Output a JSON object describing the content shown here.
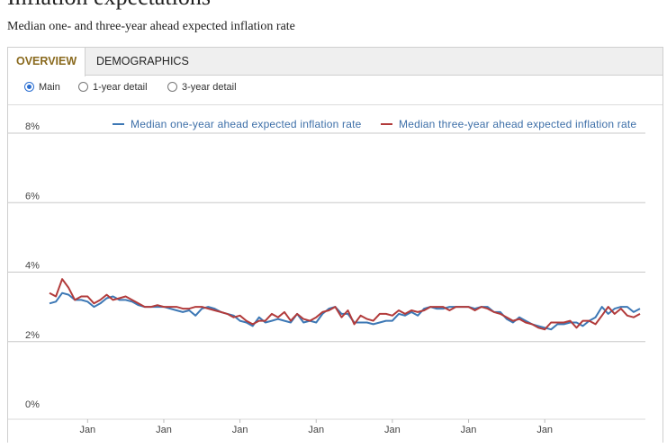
{
  "page": {
    "title": "Inflation expectations",
    "subtitle": "Median one- and three-year ahead expected inflation rate"
  },
  "tabs": [
    {
      "label": "OVERVIEW",
      "active": true
    },
    {
      "label": "DEMOGRAPHICS",
      "active": false
    }
  ],
  "view_options": [
    {
      "label": "Main",
      "selected": true
    },
    {
      "label": "1-year detail",
      "selected": false
    },
    {
      "label": "3-year detail",
      "selected": false
    }
  ],
  "colors": {
    "one_year": "#3d78b5",
    "three_year": "#b23b3b",
    "gridline": "#c8c8c8",
    "tab_active_text": "#8a6a1e"
  },
  "chart_data": {
    "type": "line",
    "title": "",
    "xlabel": "",
    "ylabel": "",
    "ylim": [
      0,
      8
    ],
    "y_ticks": [
      0,
      2,
      4,
      6,
      8
    ],
    "y_tick_labels": [
      "0%",
      "2%",
      "4%",
      "6%",
      "8%"
    ],
    "grid": true,
    "legend_position": "top",
    "x_tick_labels": [
      "Jan",
      "Jan",
      "Jan",
      "Jan",
      "Jan",
      "Jan",
      "Jan"
    ],
    "x_tick_indices": [
      6,
      18,
      30,
      42,
      54,
      66,
      78
    ],
    "series": [
      {
        "name": "Median one-year ahead expected inflation rate",
        "color": "#3d78b5",
        "values": [
          3.1,
          3.15,
          3.4,
          3.35,
          3.2,
          3.2,
          3.15,
          3.0,
          3.1,
          3.25,
          3.3,
          3.2,
          3.2,
          3.15,
          3.05,
          3.0,
          3.0,
          3.0,
          3.0,
          2.95,
          2.9,
          2.85,
          2.9,
          2.75,
          2.95,
          3.0,
          2.95,
          2.85,
          2.8,
          2.75,
          2.6,
          2.55,
          2.45,
          2.7,
          2.55,
          2.6,
          2.65,
          2.6,
          2.55,
          2.8,
          2.55,
          2.6,
          2.55,
          2.8,
          2.95,
          3.0,
          2.8,
          2.8,
          2.55,
          2.55,
          2.55,
          2.5,
          2.55,
          2.6,
          2.6,
          2.8,
          2.75,
          2.85,
          2.75,
          2.95,
          3.0,
          2.95,
          2.95,
          3.0,
          3.0,
          3.0,
          3.0,
          2.95,
          3.0,
          3.0,
          2.85,
          2.85,
          2.65,
          2.55,
          2.7,
          2.6,
          2.5,
          2.45,
          2.4,
          2.35,
          2.5,
          2.5,
          2.55,
          2.55,
          2.45,
          2.6,
          2.7,
          3.0,
          2.8,
          2.95,
          3.0,
          3.0,
          2.85,
          2.95
        ]
      },
      {
        "name": "Median three-year ahead expected inflation rate",
        "color": "#b23b3b",
        "values": [
          3.4,
          3.3,
          3.8,
          3.55,
          3.2,
          3.3,
          3.3,
          3.1,
          3.2,
          3.35,
          3.2,
          3.25,
          3.3,
          3.2,
          3.1,
          3.0,
          3.0,
          3.05,
          3.0,
          3.0,
          3.0,
          2.95,
          2.95,
          3.0,
          3.0,
          2.95,
          2.9,
          2.85,
          2.8,
          2.7,
          2.75,
          2.6,
          2.5,
          2.6,
          2.6,
          2.8,
          2.7,
          2.85,
          2.6,
          2.8,
          2.65,
          2.6,
          2.7,
          2.85,
          2.9,
          3.0,
          2.7,
          2.9,
          2.5,
          2.75,
          2.65,
          2.6,
          2.8,
          2.8,
          2.75,
          2.9,
          2.8,
          2.9,
          2.85,
          2.9,
          3.0,
          3.0,
          3.0,
          2.9,
          3.0,
          3.0,
          3.0,
          2.9,
          3.0,
          2.95,
          2.85,
          2.8,
          2.7,
          2.6,
          2.65,
          2.55,
          2.5,
          2.4,
          2.35,
          2.55,
          2.55,
          2.55,
          2.6,
          2.4,
          2.6,
          2.6,
          2.5,
          2.75,
          3.0,
          2.8,
          2.95,
          2.75,
          2.7,
          2.8
        ]
      }
    ]
  }
}
